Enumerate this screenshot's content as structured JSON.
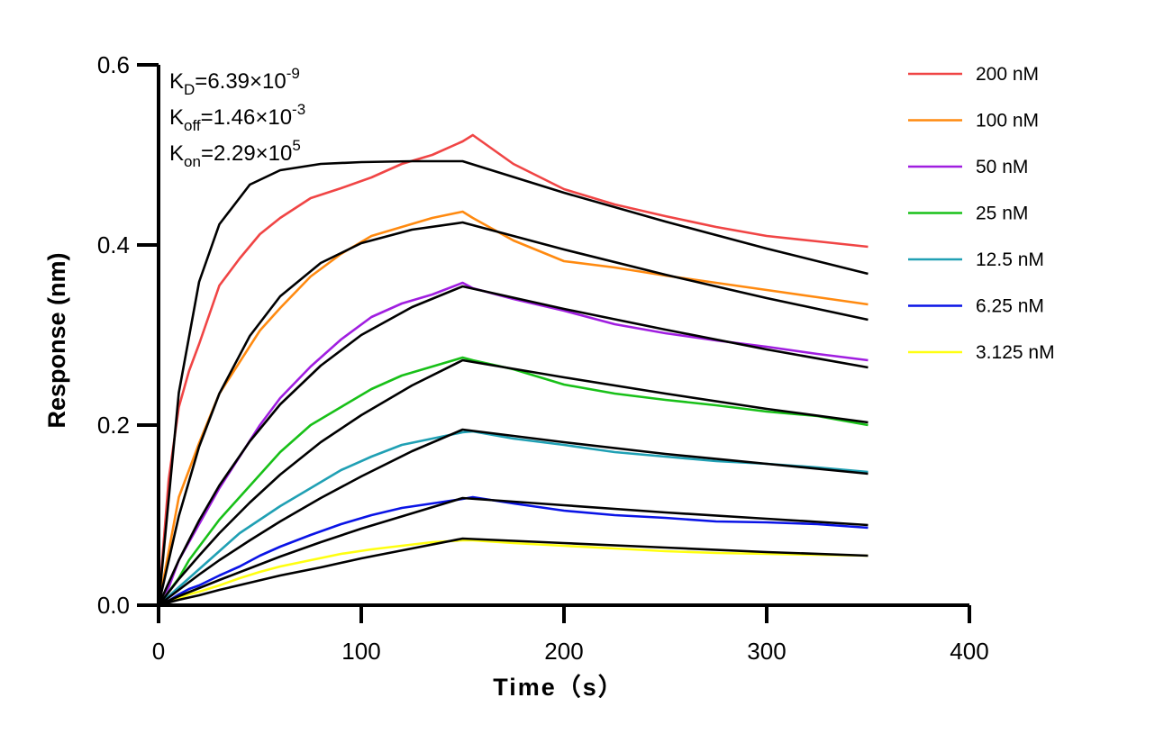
{
  "chart_data": {
    "type": "line",
    "title": "",
    "xlabel": "Time（s）",
    "ylabel": "Response (nm)",
    "xlim": [
      0,
      400
    ],
    "ylim": [
      0,
      0.6
    ],
    "xticks": [
      "0",
      "100",
      "200",
      "300",
      "400"
    ],
    "yticks": [
      "0.0",
      "0.2",
      "0.4",
      "0.6"
    ],
    "grid": false,
    "legend_position": "right",
    "annotations": [
      {
        "base": "K",
        "sub": "D",
        "value": "=6.39×10",
        "exp": "-9"
      },
      {
        "base": "K",
        "sub": "off",
        "value": "=1.46×10",
        "exp": "-3"
      },
      {
        "base": "K",
        "sub": "on",
        "value": "=2.29×10",
        "exp": "5"
      }
    ],
    "data_x": [
      0,
      5,
      10,
      15,
      20,
      30,
      40,
      50,
      60,
      75,
      90,
      105,
      120,
      135,
      150,
      155,
      175,
      200,
      225,
      250,
      275,
      300,
      325,
      350
    ],
    "fit_x": [
      0,
      10,
      20,
      30,
      45,
      60,
      80,
      100,
      125,
      150,
      200,
      250,
      300,
      350
    ],
    "fit_color": "#000000",
    "series": [
      {
        "name": "200 nM",
        "color": "#f04545",
        "values": [
          0,
          0.14,
          0.22,
          0.26,
          0.29,
          0.355,
          0.385,
          0.412,
          0.43,
          0.452,
          0.463,
          0.475,
          0.49,
          0.5,
          0.515,
          0.522,
          0.49,
          0.462,
          0.445,
          0.432,
          0.42,
          0.41,
          0.404,
          0.398
        ],
        "fit": [
          0,
          0.236,
          0.359,
          0.423,
          0.467,
          0.483,
          0.49,
          0.492,
          0.493,
          0.493,
          0.458,
          0.426,
          0.396,
          0.368
        ]
      },
      {
        "name": "100 nM",
        "color": "#ff8a10",
        "values": [
          0,
          0.06,
          0.12,
          0.15,
          0.18,
          0.235,
          0.27,
          0.305,
          0.33,
          0.365,
          0.39,
          0.41,
          0.42,
          0.43,
          0.437,
          0.43,
          0.405,
          0.382,
          0.375,
          0.366,
          0.358,
          0.35,
          0.342,
          0.334
        ],
        "fit": [
          0,
          0.099,
          0.176,
          0.235,
          0.299,
          0.343,
          0.38,
          0.402,
          0.417,
          0.425,
          0.395,
          0.367,
          0.341,
          0.317
        ]
      },
      {
        "name": "50 nM",
        "color": "#a01ee0",
        "values": [
          0,
          0.02,
          0.05,
          0.07,
          0.09,
          0.13,
          0.165,
          0.2,
          0.23,
          0.265,
          0.295,
          0.32,
          0.335,
          0.345,
          0.358,
          0.352,
          0.34,
          0.327,
          0.312,
          0.302,
          0.294,
          0.287,
          0.279,
          0.272
        ],
        "fit": [
          0,
          0.05,
          0.094,
          0.133,
          0.182,
          0.223,
          0.266,
          0.3,
          0.331,
          0.354,
          0.329,
          0.306,
          0.284,
          0.264
        ]
      },
      {
        "name": "25 nM",
        "color": "#18c018",
        "values": [
          0,
          0.015,
          0.03,
          0.05,
          0.065,
          0.095,
          0.12,
          0.145,
          0.17,
          0.2,
          0.22,
          0.24,
          0.255,
          0.265,
          0.275,
          0.272,
          0.262,
          0.245,
          0.235,
          0.228,
          0.222,
          0.215,
          0.21,
          0.2
        ],
        "fit": [
          0,
          0.029,
          0.055,
          0.08,
          0.114,
          0.145,
          0.181,
          0.211,
          0.244,
          0.272,
          0.253,
          0.235,
          0.218,
          0.203
        ]
      },
      {
        "name": "12.5 nM",
        "color": "#20a0b4",
        "values": [
          0,
          0.01,
          0.02,
          0.03,
          0.04,
          0.06,
          0.08,
          0.095,
          0.11,
          0.13,
          0.15,
          0.165,
          0.178,
          0.185,
          0.192,
          0.193,
          0.185,
          0.178,
          0.17,
          0.165,
          0.16,
          0.157,
          0.153,
          0.148
        ],
        "fit": [
          0,
          0.017,
          0.034,
          0.05,
          0.072,
          0.093,
          0.119,
          0.143,
          0.171,
          0.195,
          0.181,
          0.168,
          0.157,
          0.146
        ]
      },
      {
        "name": "6.25 nM",
        "color": "#0a14e6",
        "values": [
          0,
          0.005,
          0.012,
          0.018,
          0.022,
          0.033,
          0.043,
          0.055,
          0.065,
          0.078,
          0.09,
          0.1,
          0.108,
          0.113,
          0.118,
          0.12,
          0.113,
          0.105,
          0.1,
          0.097,
          0.093,
          0.092,
          0.09,
          0.086
        ],
        "fit": [
          0,
          0.01,
          0.019,
          0.028,
          0.041,
          0.054,
          0.07,
          0.085,
          0.102,
          0.119,
          0.111,
          0.103,
          0.096,
          0.089
        ]
      },
      {
        "name": "3.125 nM",
        "color": "#ffff10",
        "values": [
          0,
          0.003,
          0.008,
          0.012,
          0.015,
          0.022,
          0.03,
          0.037,
          0.043,
          0.05,
          0.057,
          0.062,
          0.066,
          0.07,
          0.072,
          0.072,
          0.069,
          0.066,
          0.063,
          0.06,
          0.058,
          0.057,
          0.056,
          0.055
        ],
        "fit": [
          0,
          0.006,
          0.011,
          0.017,
          0.025,
          0.033,
          0.042,
          0.052,
          0.063,
          0.074,
          0.069,
          0.064,
          0.059,
          0.055
        ]
      }
    ]
  }
}
